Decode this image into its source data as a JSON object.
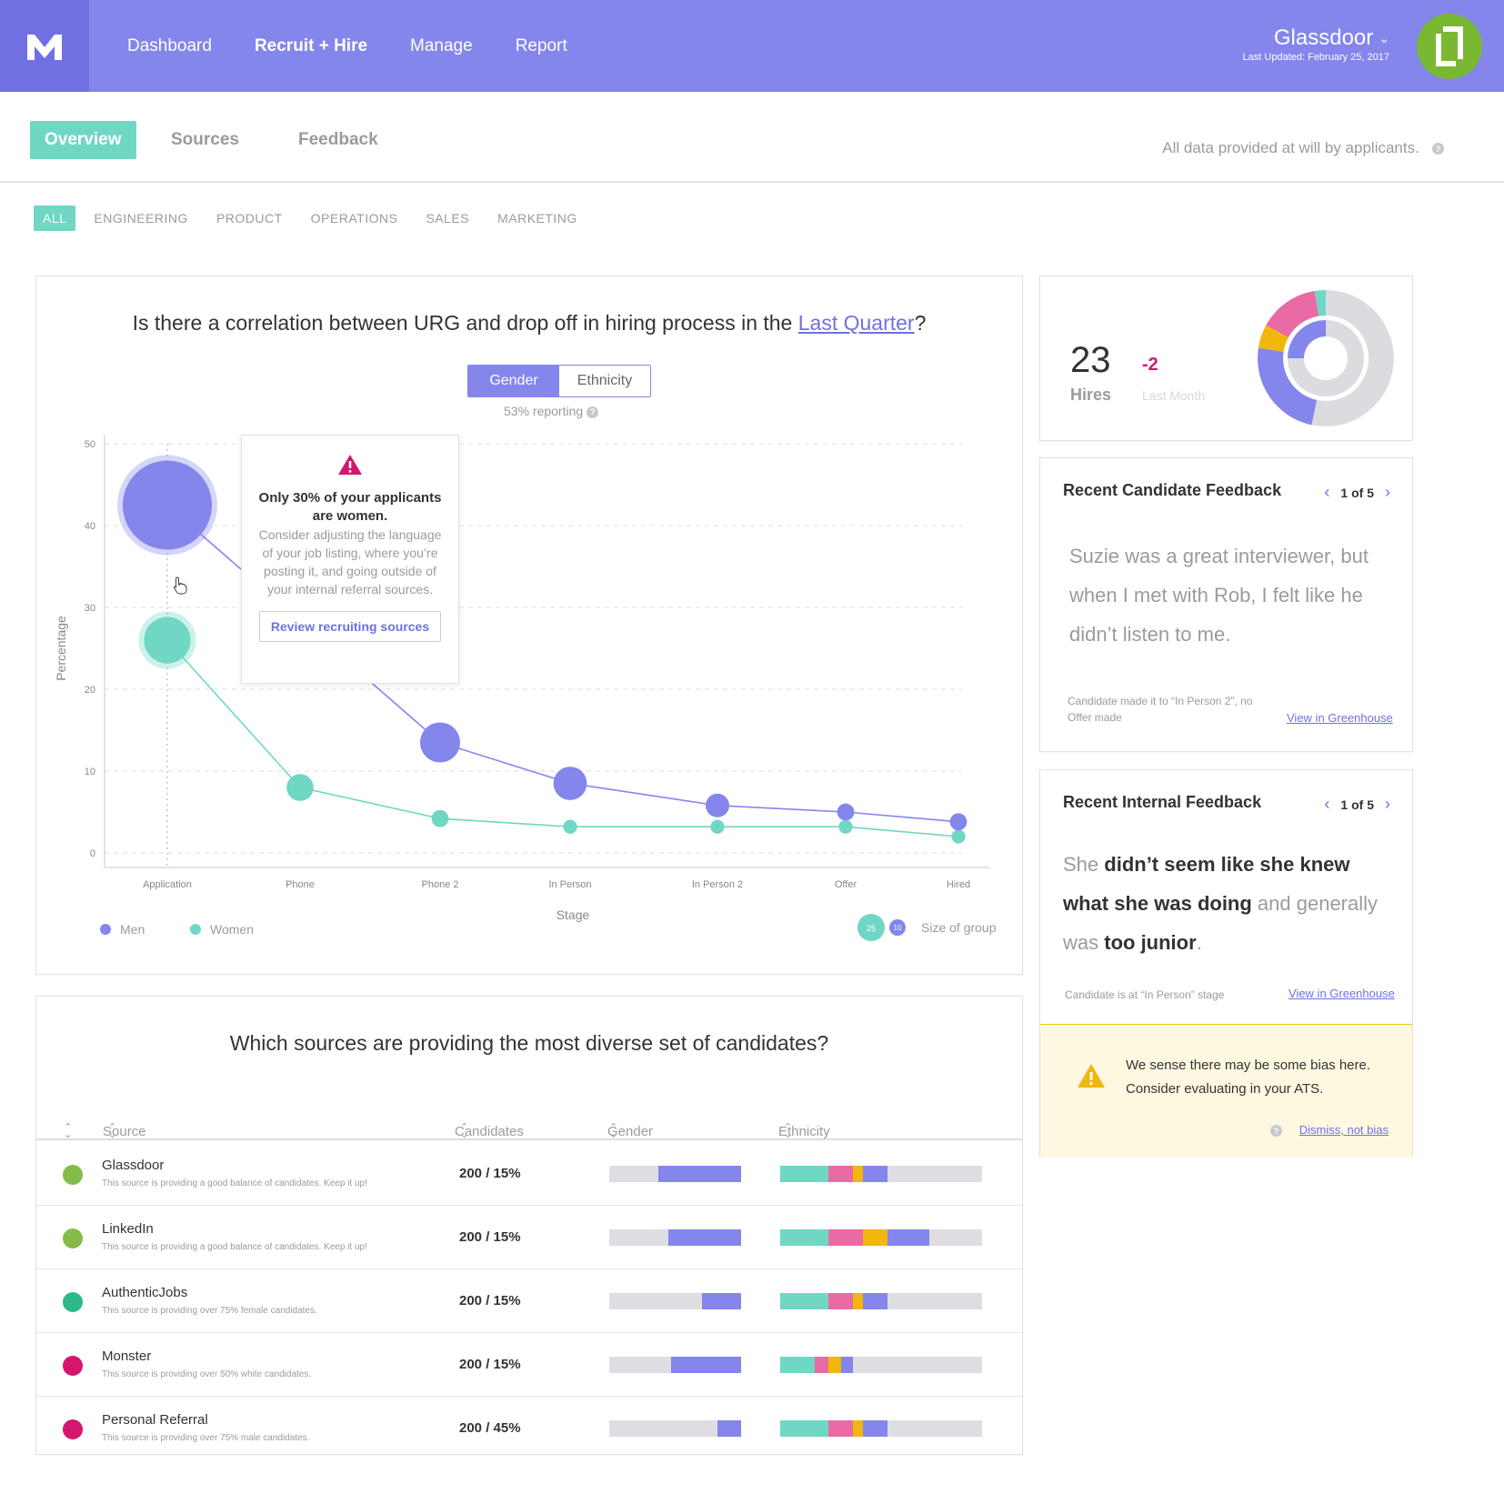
{
  "nav": {
    "items": [
      "Dashboard",
      "Recruit + Hire",
      "Manage",
      "Report"
    ],
    "active_index": 1
  },
  "org": {
    "name": "Glassdoor",
    "last_updated": "Last Updated: February 25, 2017"
  },
  "subtabs": {
    "items": [
      "Overview",
      "Sources",
      "Feedback"
    ],
    "note": "All data provided at will by applicants."
  },
  "filters": [
    "ALL",
    "ENGINEERING",
    "PRODUCT",
    "OPERATIONS",
    "SALES",
    "MARKETING"
  ],
  "urg_chart": {
    "title_prefix": "Is there a correlation between URG and drop off in hiring process in the ",
    "title_link": "Last Quarter",
    "title_suffix": "?",
    "toggle": {
      "on": "Gender",
      "off": "Ethnicity"
    },
    "reporting": "53% reporting",
    "tooltip": {
      "headline": "Only 30% of your applicants are women.",
      "body": "Consider adjusting the language of your job listing, where you’re posting it, and going outside of your internal referral sources.",
      "button": "Review recruiting sources"
    },
    "legend": {
      "men": "Men",
      "women": "Women",
      "size_label": "Size of group",
      "size_big": "25",
      "size_small": "10"
    }
  },
  "chart_data": {
    "type": "scatter",
    "categories": [
      "Application",
      "Phone",
      "Phone 2",
      "In Person",
      "In Person 2",
      "Offer",
      "Hired"
    ],
    "xlabel": "Stage",
    "ylabel": "Percentage",
    "ylim": [
      0,
      50
    ],
    "yticks": [
      0,
      10,
      20,
      30,
      40,
      50
    ],
    "grid": true,
    "series": [
      {
        "name": "Men",
        "color": "#8486ec",
        "values": [
          42.5,
          null,
          13.5,
          8.5,
          5.8,
          5,
          3.8
        ],
        "sizes": [
          25,
          null,
          10,
          8,
          5,
          3,
          3
        ]
      },
      {
        "name": "Women",
        "color": "#6fd7c3",
        "values": [
          26,
          8,
          4.2,
          3.2,
          3.2,
          3.2,
          2
        ],
        "sizes": [
          12,
          6,
          3,
          2,
          2,
          2,
          2
        ]
      }
    ]
  },
  "hires": {
    "count": "23",
    "label": "Hires",
    "delta": "-2",
    "delta_label": "Last Month"
  },
  "candidate_feedback": {
    "title": "Recent Candidate Feedback",
    "pager": "1 of 5",
    "quote": "Suzie was a great interviewer, but when I met with Rob, I felt like he didn’t listen to me.",
    "meta": "Candidate made it to “In Person 2”, no Offer made",
    "link": "View in Greenhouse"
  },
  "internal_feedback": {
    "title": "Recent Internal Feedback",
    "pager": "1 of 5",
    "quote_parts": [
      "She ",
      "didn’t seem like she knew what she was doing",
      " and generally was ",
      "too junior",
      "."
    ],
    "meta": "Candidate is at “In Person” stage",
    "link": "View in Greenhouse",
    "bias_line1": "We sense there may be some bias here.",
    "bias_line2": "Consider evaluating in your ATS.",
    "dismiss": "Dismiss, not bias"
  },
  "sources": {
    "title": "Which sources are providing the most diverse set of candidates?",
    "headers": {
      "source": "Source",
      "candidates": "Candidates",
      "gender": "Gender",
      "ethnicity": "Ethnicity"
    },
    "colors": {
      "teal": "#6fd7c3",
      "pink": "#e96aa5",
      "yellow": "#f1b70d",
      "purple": "#8486ec",
      "grey": "#dedee2"
    },
    "rows": [
      {
        "name": "Glassdoor",
        "desc": "This source is providing a good balance of candidates. Keep it up!",
        "value": "200 / 15%",
        "dot": "#85bb4a",
        "gender": [
          0.37,
          0.63
        ],
        "ethnicity": [
          0.24,
          0.12,
          0.05,
          0.12
        ]
      },
      {
        "name": "LinkedIn",
        "desc": "This source is providing a good balance of candidates. Keep it up!",
        "value": "200 / 15%",
        "dot": "#85bb4a",
        "gender": [
          0.45,
          0.55
        ],
        "ethnicity": [
          0.24,
          0.17,
          0.12,
          0.21
        ]
      },
      {
        "name": "AuthenticJobs",
        "desc": "This source is providing over 75% female candidates.",
        "value": "200 / 15%",
        "dot": "#2db88c",
        "gender": [
          0.7,
          0.3
        ],
        "ethnicity": [
          0.24,
          0.12,
          0.05,
          0.12
        ]
      },
      {
        "name": "Monster",
        "desc": "This source is providing over 50% white candidates.",
        "value": "200 / 15%",
        "dot": "#d4166e",
        "gender": [
          0.47,
          0.53
        ],
        "ethnicity": [
          0.17,
          0.07,
          0.06,
          0.06
        ]
      },
      {
        "name": "Personal Referral",
        "desc": "This source is providing over 75% male candidates.",
        "value": "200 / 45%",
        "dot": "#d4166e",
        "gender": [
          0.82,
          0.18
        ],
        "ethnicity": [
          0.24,
          0.12,
          0.05,
          0.12
        ]
      }
    ]
  }
}
